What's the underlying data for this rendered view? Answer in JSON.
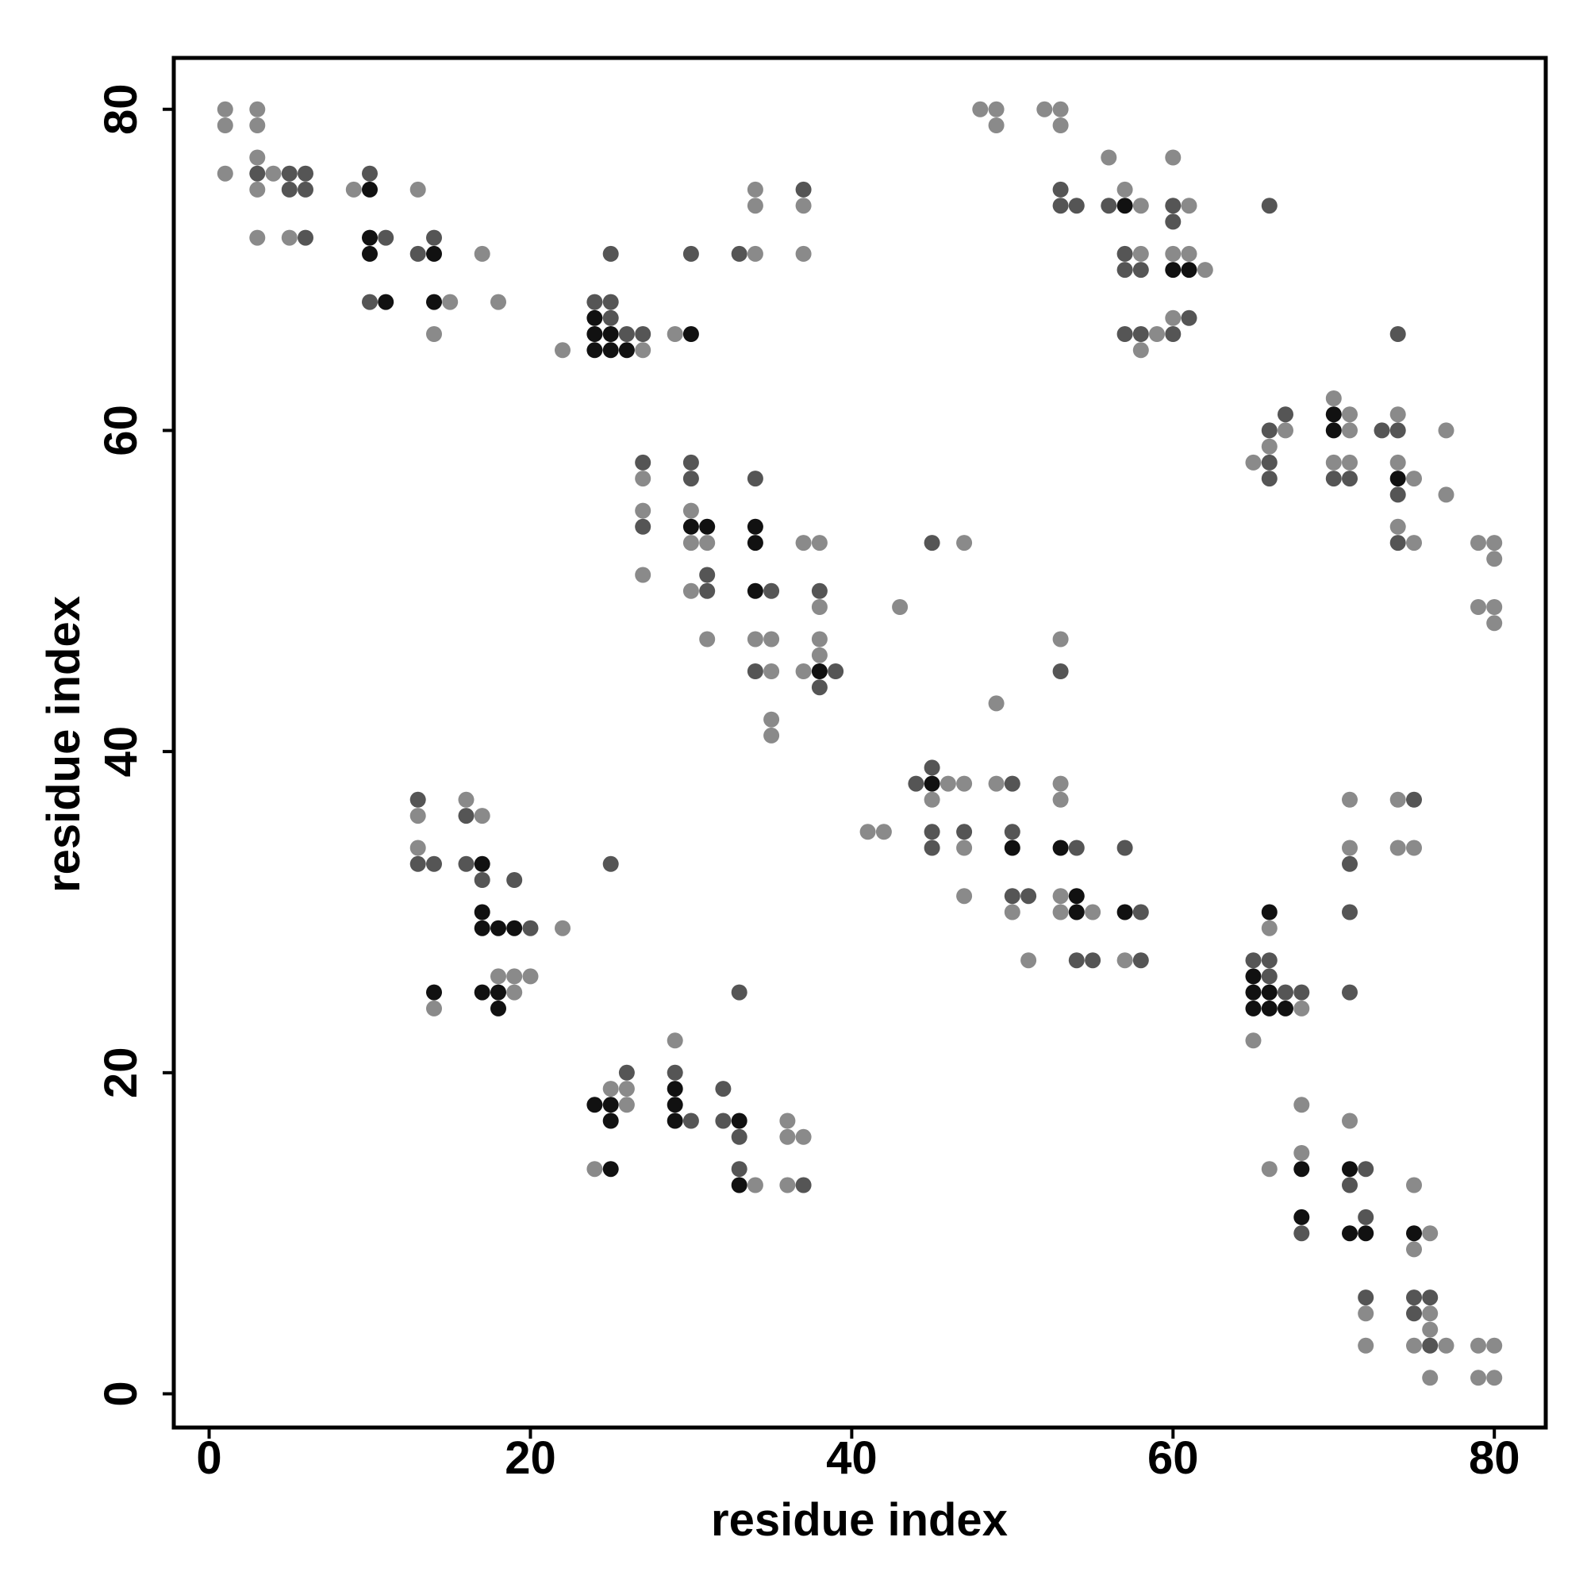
{
  "chart_data": {
    "type": "scatter",
    "title": "",
    "xlabel": "residue index",
    "ylabel": "residue index",
    "xlim": [
      -2.2,
      83.2
    ],
    "ylim": [
      -2.1,
      83.2
    ],
    "xticks": [
      0,
      20,
      40,
      60,
      80
    ],
    "yticks": [
      0,
      20,
      40,
      60,
      80
    ],
    "grid": false,
    "legend": "none",
    "colors": {
      "strong": "#111111",
      "medium": "#555555",
      "weak": "#8a8a8a"
    },
    "points": [
      [
        1,
        80,
        "weak"
      ],
      [
        3,
        80,
        "weak"
      ],
      [
        1,
        79,
        "weak"
      ],
      [
        3,
        79,
        "weak"
      ],
      [
        1,
        76,
        "weak"
      ],
      [
        3,
        77,
        "weak"
      ],
      [
        3,
        76,
        "medium"
      ],
      [
        4,
        76,
        "weak"
      ],
      [
        5,
        76,
        "medium"
      ],
      [
        6,
        76,
        "medium"
      ],
      [
        3,
        75,
        "weak"
      ],
      [
        5,
        75,
        "medium"
      ],
      [
        6,
        75,
        "medium"
      ],
      [
        3,
        72,
        "weak"
      ],
      [
        5,
        72,
        "weak"
      ],
      [
        6,
        72,
        "medium"
      ],
      [
        9,
        75,
        "weak"
      ],
      [
        10,
        76,
        "medium"
      ],
      [
        10,
        75,
        "strong"
      ],
      [
        13,
        75,
        "weak"
      ],
      [
        10,
        72,
        "strong"
      ],
      [
        11,
        72,
        "medium"
      ],
      [
        10,
        71,
        "strong"
      ],
      [
        13,
        71,
        "medium"
      ],
      [
        14,
        71,
        "strong"
      ],
      [
        14,
        72,
        "medium"
      ],
      [
        10,
        68,
        "medium"
      ],
      [
        11,
        68,
        "strong"
      ],
      [
        14,
        68,
        "strong"
      ],
      [
        15,
        68,
        "weak"
      ],
      [
        14,
        66,
        "weak"
      ],
      [
        17,
        71,
        "weak"
      ],
      [
        18,
        68,
        "weak"
      ],
      [
        22,
        65,
        "weak"
      ],
      [
        24,
        68,
        "medium"
      ],
      [
        25,
        68,
        "medium"
      ],
      [
        24,
        67,
        "strong"
      ],
      [
        25,
        67,
        "medium"
      ],
      [
        24,
        66,
        "strong"
      ],
      [
        25,
        66,
        "strong"
      ],
      [
        26,
        66,
        "medium"
      ],
      [
        27,
        66,
        "medium"
      ],
      [
        24,
        65,
        "strong"
      ],
      [
        25,
        65,
        "strong"
      ],
      [
        26,
        65,
        "strong"
      ],
      [
        27,
        65,
        "weak"
      ],
      [
        25,
        71,
        "medium"
      ],
      [
        29,
        66,
        "weak"
      ],
      [
        30,
        66,
        "strong"
      ],
      [
        30,
        71,
        "medium"
      ],
      [
        33,
        71,
        "medium"
      ],
      [
        34,
        71,
        "weak"
      ],
      [
        34,
        75,
        "weak"
      ],
      [
        34,
        74,
        "weak"
      ],
      [
        37,
        75,
        "medium"
      ],
      [
        37,
        74,
        "weak"
      ],
      [
        37,
        71,
        "weak"
      ],
      [
        48,
        80,
        "weak"
      ],
      [
        49,
        80,
        "weak"
      ],
      [
        49,
        79,
        "weak"
      ],
      [
        52,
        80,
        "weak"
      ],
      [
        53,
        80,
        "weak"
      ],
      [
        53,
        79,
        "weak"
      ],
      [
        56,
        77,
        "weak"
      ],
      [
        53,
        75,
        "medium"
      ],
      [
        53,
        74,
        "medium"
      ],
      [
        54,
        74,
        "medium"
      ],
      [
        56,
        74,
        "medium"
      ],
      [
        57,
        74,
        "strong"
      ],
      [
        58,
        74,
        "weak"
      ],
      [
        57,
        75,
        "weak"
      ],
      [
        57,
        71,
        "medium"
      ],
      [
        58,
        71,
        "weak"
      ],
      [
        57,
        70,
        "medium"
      ],
      [
        58,
        70,
        "medium"
      ],
      [
        57,
        66,
        "medium"
      ],
      [
        58,
        66,
        "medium"
      ],
      [
        58,
        65,
        "weak"
      ],
      [
        59,
        66,
        "weak"
      ],
      [
        60,
        77,
        "weak"
      ],
      [
        60,
        74,
        "medium"
      ],
      [
        61,
        74,
        "weak"
      ],
      [
        60,
        73,
        "medium"
      ],
      [
        60,
        71,
        "weak"
      ],
      [
        61,
        71,
        "weak"
      ],
      [
        60,
        70,
        "strong"
      ],
      [
        61,
        70,
        "strong"
      ],
      [
        62,
        70,
        "weak"
      ],
      [
        60,
        67,
        "weak"
      ],
      [
        61,
        67,
        "medium"
      ],
      [
        60,
        66,
        "medium"
      ],
      [
        66,
        74,
        "medium"
      ],
      [
        27,
        58,
        "medium"
      ],
      [
        27,
        57,
        "weak"
      ],
      [
        27,
        55,
        "weak"
      ],
      [
        27,
        54,
        "medium"
      ],
      [
        27,
        51,
        "weak"
      ],
      [
        30,
        58,
        "medium"
      ],
      [
        30,
        57,
        "medium"
      ],
      [
        30,
        55,
        "weak"
      ],
      [
        30,
        54,
        "strong"
      ],
      [
        31,
        54,
        "strong"
      ],
      [
        30,
        53,
        "weak"
      ],
      [
        31,
        53,
        "weak"
      ],
      [
        31,
        51,
        "medium"
      ],
      [
        30,
        50,
        "weak"
      ],
      [
        31,
        50,
        "medium"
      ],
      [
        31,
        47,
        "weak"
      ],
      [
        34,
        57,
        "medium"
      ],
      [
        34,
        54,
        "strong"
      ],
      [
        34,
        53,
        "strong"
      ],
      [
        34,
        50,
        "strong"
      ],
      [
        35,
        50,
        "medium"
      ],
      [
        34,
        47,
        "weak"
      ],
      [
        35,
        47,
        "weak"
      ],
      [
        34,
        45,
        "medium"
      ],
      [
        35,
        45,
        "weak"
      ],
      [
        35,
        42,
        "weak"
      ],
      [
        35,
        41,
        "weak"
      ],
      [
        37,
        53,
        "weak"
      ],
      [
        38,
        53,
        "weak"
      ],
      [
        38,
        50,
        "medium"
      ],
      [
        38,
        49,
        "weak"
      ],
      [
        38,
        47,
        "weak"
      ],
      [
        38,
        46,
        "weak"
      ],
      [
        37,
        45,
        "weak"
      ],
      [
        38,
        45,
        "strong"
      ],
      [
        39,
        45,
        "medium"
      ],
      [
        38,
        44,
        "medium"
      ],
      [
        43,
        49,
        "weak"
      ],
      [
        45,
        53,
        "medium"
      ],
      [
        47,
        53,
        "weak"
      ],
      [
        65,
        58,
        "weak"
      ],
      [
        66,
        60,
        "medium"
      ],
      [
        67,
        61,
        "medium"
      ],
      [
        67,
        60,
        "weak"
      ],
      [
        66,
        59,
        "weak"
      ],
      [
        66,
        58,
        "medium"
      ],
      [
        66,
        57,
        "medium"
      ],
      [
        70,
        62,
        "weak"
      ],
      [
        70,
        61,
        "strong"
      ],
      [
        71,
        61,
        "weak"
      ],
      [
        70,
        60,
        "strong"
      ],
      [
        71,
        60,
        "weak"
      ],
      [
        70,
        58,
        "weak"
      ],
      [
        71,
        58,
        "weak"
      ],
      [
        70,
        57,
        "medium"
      ],
      [
        71,
        57,
        "medium"
      ],
      [
        73,
        60,
        "medium"
      ],
      [
        74,
        61,
        "weak"
      ],
      [
        74,
        60,
        "medium"
      ],
      [
        74,
        58,
        "weak"
      ],
      [
        74,
        57,
        "strong"
      ],
      [
        75,
        57,
        "weak"
      ],
      [
        74,
        56,
        "medium"
      ],
      [
        74,
        54,
        "weak"
      ],
      [
        74,
        53,
        "medium"
      ],
      [
        75,
        53,
        "weak"
      ],
      [
        77,
        60,
        "weak"
      ],
      [
        77,
        56,
        "weak"
      ],
      [
        74,
        66,
        "medium"
      ],
      [
        79,
        53,
        "weak"
      ],
      [
        80,
        53,
        "weak"
      ],
      [
        80,
        52,
        "weak"
      ],
      [
        79,
        49,
        "weak"
      ],
      [
        80,
        49,
        "weak"
      ],
      [
        80,
        48,
        "weak"
      ],
      [
        13,
        37,
        "medium"
      ],
      [
        13,
        36,
        "weak"
      ],
      [
        13,
        34,
        "weak"
      ],
      [
        13,
        33,
        "medium"
      ],
      [
        14,
        33,
        "medium"
      ],
      [
        16,
        37,
        "weak"
      ],
      [
        16,
        36,
        "medium"
      ],
      [
        17,
        36,
        "weak"
      ],
      [
        16,
        33,
        "medium"
      ],
      [
        17,
        33,
        "strong"
      ],
      [
        17,
        32,
        "medium"
      ],
      [
        19,
        32,
        "medium"
      ],
      [
        17,
        30,
        "strong"
      ],
      [
        17,
        29,
        "strong"
      ],
      [
        18,
        29,
        "strong"
      ],
      [
        19,
        29,
        "strong"
      ],
      [
        20,
        29,
        "medium"
      ],
      [
        22,
        29,
        "weak"
      ],
      [
        18,
        26,
        "weak"
      ],
      [
        19,
        26,
        "weak"
      ],
      [
        20,
        26,
        "weak"
      ],
      [
        14,
        25,
        "strong"
      ],
      [
        14,
        24,
        "weak"
      ],
      [
        17,
        25,
        "strong"
      ],
      [
        18,
        25,
        "strong"
      ],
      [
        19,
        25,
        "weak"
      ],
      [
        18,
        24,
        "strong"
      ],
      [
        25,
        33,
        "medium"
      ],
      [
        33,
        25,
        "medium"
      ],
      [
        29,
        22,
        "weak"
      ],
      [
        26,
        20,
        "medium"
      ],
      [
        29,
        20,
        "medium"
      ],
      [
        25,
        19,
        "weak"
      ],
      [
        26,
        19,
        "weak"
      ],
      [
        29,
        19,
        "strong"
      ],
      [
        24,
        18,
        "strong"
      ],
      [
        25,
        18,
        "strong"
      ],
      [
        26,
        18,
        "weak"
      ],
      [
        29,
        18,
        "strong"
      ],
      [
        25,
        17,
        "strong"
      ],
      [
        29,
        17,
        "strong"
      ],
      [
        30,
        17,
        "medium"
      ],
      [
        24,
        14,
        "weak"
      ],
      [
        25,
        14,
        "strong"
      ],
      [
        32,
        19,
        "medium"
      ],
      [
        32,
        17,
        "medium"
      ],
      [
        33,
        17,
        "strong"
      ],
      [
        33,
        16,
        "medium"
      ],
      [
        33,
        14,
        "medium"
      ],
      [
        33,
        13,
        "strong"
      ],
      [
        34,
        13,
        "weak"
      ],
      [
        36,
        17,
        "weak"
      ],
      [
        36,
        16,
        "weak"
      ],
      [
        37,
        16,
        "weak"
      ],
      [
        36,
        13,
        "weak"
      ],
      [
        37,
        13,
        "medium"
      ],
      [
        41,
        35,
        "weak"
      ],
      [
        42,
        35,
        "weak"
      ],
      [
        44,
        38,
        "medium"
      ],
      [
        45,
        39,
        "medium"
      ],
      [
        45,
        38,
        "strong"
      ],
      [
        46,
        38,
        "weak"
      ],
      [
        47,
        38,
        "weak"
      ],
      [
        45,
        37,
        "weak"
      ],
      [
        45,
        35,
        "medium"
      ],
      [
        47,
        35,
        "medium"
      ],
      [
        45,
        34,
        "medium"
      ],
      [
        47,
        34,
        "weak"
      ],
      [
        47,
        31,
        "weak"
      ],
      [
        49,
        43,
        "weak"
      ],
      [
        49,
        38,
        "weak"
      ],
      [
        50,
        38,
        "medium"
      ],
      [
        50,
        35,
        "medium"
      ],
      [
        50,
        34,
        "strong"
      ],
      [
        50,
        31,
        "medium"
      ],
      [
        51,
        31,
        "medium"
      ],
      [
        50,
        30,
        "weak"
      ],
      [
        51,
        27,
        "weak"
      ],
      [
        53,
        47,
        "weak"
      ],
      [
        53,
        45,
        "medium"
      ],
      [
        53,
        38,
        "weak"
      ],
      [
        53,
        37,
        "weak"
      ],
      [
        53,
        34,
        "strong"
      ],
      [
        54,
        34,
        "medium"
      ],
      [
        53,
        31,
        "weak"
      ],
      [
        54,
        31,
        "strong"
      ],
      [
        53,
        30,
        "weak"
      ],
      [
        54,
        30,
        "strong"
      ],
      [
        55,
        30,
        "weak"
      ],
      [
        54,
        27,
        "medium"
      ],
      [
        55,
        27,
        "medium"
      ],
      [
        57,
        34,
        "medium"
      ],
      [
        57,
        30,
        "strong"
      ],
      [
        58,
        30,
        "medium"
      ],
      [
        57,
        27,
        "weak"
      ],
      [
        58,
        27,
        "medium"
      ],
      [
        65,
        27,
        "medium"
      ],
      [
        66,
        27,
        "medium"
      ],
      [
        65,
        26,
        "strong"
      ],
      [
        66,
        26,
        "medium"
      ],
      [
        65,
        25,
        "strong"
      ],
      [
        66,
        25,
        "strong"
      ],
      [
        67,
        25,
        "medium"
      ],
      [
        68,
        25,
        "medium"
      ],
      [
        65,
        24,
        "strong"
      ],
      [
        66,
        24,
        "strong"
      ],
      [
        67,
        24,
        "strong"
      ],
      [
        68,
        24,
        "weak"
      ],
      [
        66,
        30,
        "strong"
      ],
      [
        66,
        29,
        "weak"
      ],
      [
        65,
        22,
        "weak"
      ],
      [
        71,
        37,
        "weak"
      ],
      [
        71,
        34,
        "weak"
      ],
      [
        71,
        33,
        "medium"
      ],
      [
        71,
        30,
        "medium"
      ],
      [
        71,
        25,
        "medium"
      ],
      [
        74,
        37,
        "weak"
      ],
      [
        75,
        37,
        "medium"
      ],
      [
        74,
        34,
        "weak"
      ],
      [
        75,
        34,
        "weak"
      ],
      [
        68,
        18,
        "weak"
      ],
      [
        68,
        15,
        "weak"
      ],
      [
        66,
        14,
        "weak"
      ],
      [
        68,
        14,
        "strong"
      ],
      [
        68,
        11,
        "strong"
      ],
      [
        68,
        10,
        "medium"
      ],
      [
        71,
        17,
        "weak"
      ],
      [
        71,
        14,
        "strong"
      ],
      [
        72,
        14,
        "medium"
      ],
      [
        71,
        13,
        "medium"
      ],
      [
        72,
        11,
        "medium"
      ],
      [
        71,
        10,
        "strong"
      ],
      [
        72,
        10,
        "strong"
      ],
      [
        75,
        13,
        "weak"
      ],
      [
        75,
        10,
        "strong"
      ],
      [
        76,
        10,
        "weak"
      ],
      [
        75,
        9,
        "weak"
      ],
      [
        72,
        6,
        "medium"
      ],
      [
        72,
        5,
        "weak"
      ],
      [
        72,
        3,
        "weak"
      ],
      [
        75,
        6,
        "medium"
      ],
      [
        76,
        6,
        "medium"
      ],
      [
        75,
        5,
        "medium"
      ],
      [
        76,
        5,
        "weak"
      ],
      [
        76,
        4,
        "weak"
      ],
      [
        75,
        3,
        "weak"
      ],
      [
        76,
        3,
        "medium"
      ],
      [
        77,
        3,
        "weak"
      ],
      [
        76,
        1,
        "weak"
      ],
      [
        79,
        3,
        "weak"
      ],
      [
        80,
        3,
        "weak"
      ],
      [
        79,
        1,
        "weak"
      ],
      [
        80,
        1,
        "weak"
      ]
    ]
  }
}
